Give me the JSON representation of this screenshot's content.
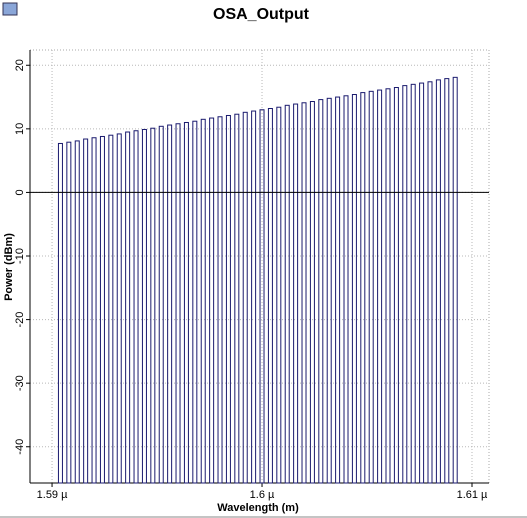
{
  "chart_data": {
    "type": "bar",
    "title": "OSA_Output",
    "xlabel": "Wavelength (m)",
    "ylabel": "Power (dBm)",
    "x": [
      1.5904e-06,
      1.5908e-06,
      1.5912e-06,
      1.5916e-06,
      1.592e-06,
      1.5924e-06,
      1.5928e-06,
      1.5932e-06,
      1.5936e-06,
      1.594e-06,
      1.5944e-06,
      1.5948e-06,
      1.5952e-06,
      1.5956e-06,
      1.596e-06,
      1.5964e-06,
      1.5968e-06,
      1.5972e-06,
      1.5976e-06,
      1.598e-06,
      1.5984e-06,
      1.5988e-06,
      1.5992e-06,
      1.5996e-06,
      1.6e-06,
      1.6004e-06,
      1.6008e-06,
      1.6012e-06,
      1.6016e-06,
      1.602e-06,
      1.6024e-06,
      1.6028e-06,
      1.6032e-06,
      1.6036e-06,
      1.604e-06,
      1.6044e-06,
      1.6048e-06,
      1.6052e-06,
      1.6056e-06,
      1.606e-06,
      1.6064e-06,
      1.6068e-06,
      1.6072e-06,
      1.6076e-06,
      1.608e-06,
      1.6084e-06,
      1.6088e-06,
      1.6092e-06
    ],
    "values": [
      7.7,
      7.9,
      8.1,
      8.4,
      8.6,
      8.8,
      9.0,
      9.2,
      9.5,
      9.7,
      9.9,
      10.1,
      10.4,
      10.6,
      10.8,
      11.0,
      11.2,
      11.5,
      11.7,
      11.9,
      12.1,
      12.3,
      12.6,
      12.8,
      13.0,
      13.2,
      13.4,
      13.7,
      13.9,
      14.1,
      14.3,
      14.6,
      14.8,
      15.0,
      15.2,
      15.4,
      15.7,
      15.9,
      16.1,
      16.3,
      16.5,
      16.8,
      17.0,
      17.2,
      17.4,
      17.7,
      17.9,
      18.1
    ],
    "color": "#1a1a6e",
    "xlim": [
      1.58895e-06,
      1.61081e-06
    ],
    "ylim": [
      -45.7,
      22.4
    ],
    "xticks": [
      {
        "value": 1.59e-06,
        "label": "1.59 µ"
      },
      {
        "value": 1.6e-06,
        "label": "1.6 µ"
      },
      {
        "value": 1.61e-06,
        "label": "1.61 µ"
      }
    ],
    "yticks": [
      -40,
      -30,
      -20,
      -10,
      0,
      10,
      20
    ],
    "grid": true
  }
}
